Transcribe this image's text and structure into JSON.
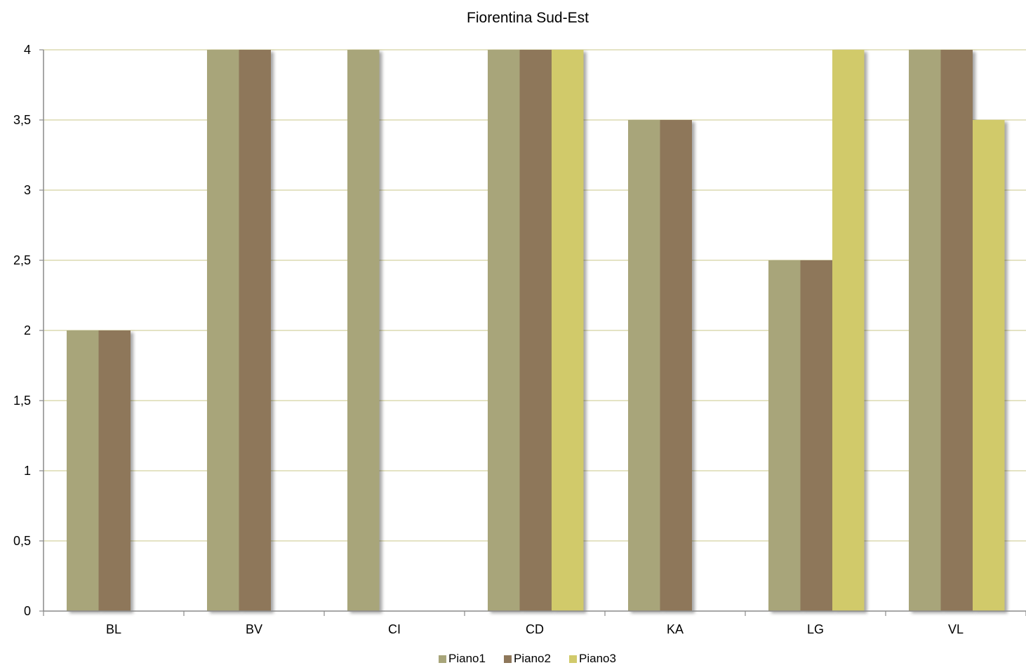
{
  "chart_data": {
    "type": "bar",
    "title": "Fiorentina Sud-Est",
    "xlabel": "",
    "ylabel": "",
    "categories": [
      "BL",
      "BV",
      "CI",
      "CD",
      "KA",
      "LG",
      "VL"
    ],
    "series": [
      {
        "name": "Piano1",
        "color": "#a8a57a",
        "values": [
          2,
          4,
          4,
          4,
          3.5,
          2.5,
          4
        ]
      },
      {
        "name": "Piano2",
        "color": "#8e775a",
        "values": [
          2,
          4,
          0,
          4,
          3.5,
          2.5,
          4
        ]
      },
      {
        "name": "Piano3",
        "color": "#d1ca6b",
        "values": [
          0,
          0,
          0,
          4,
          0,
          4,
          3.5
        ]
      }
    ],
    "ylim": [
      0,
      4
    ],
    "yticks": [
      "0",
      "0,5",
      "1",
      "1,5",
      "2",
      "2,5",
      "3",
      "3,5",
      "4"
    ],
    "ytick_values": [
      0,
      0.5,
      1,
      1.5,
      2,
      2.5,
      3,
      3.5,
      4
    ],
    "grid": true,
    "gridline_color": "#dcdab0",
    "axis_color": "#8a8a8a",
    "legend_position": "bottom"
  }
}
